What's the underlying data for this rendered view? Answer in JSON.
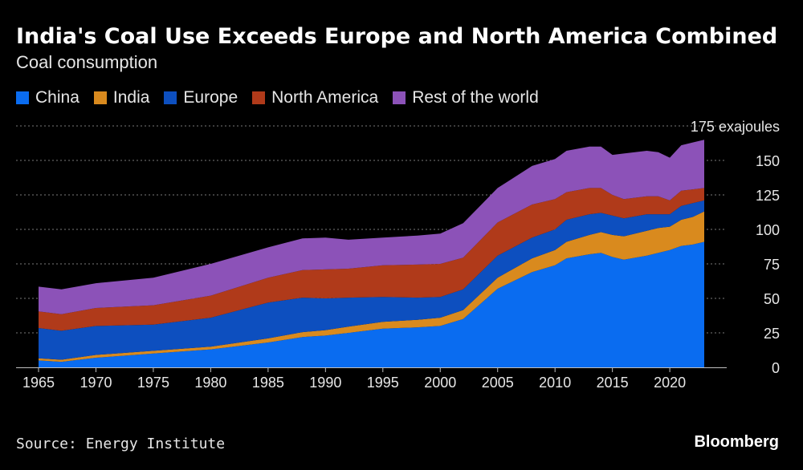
{
  "title": "India's Coal Use Exceeds Europe and North America Combined",
  "subtitle": "Coal consumption",
  "source": "Source: Energy Institute",
  "brand": "Bloomberg",
  "y_unit_label": "175 exajoules",
  "colors": {
    "China": "#0a6cf0",
    "India": "#d98a1e",
    "Europe": "#0d4fbf",
    "North America": "#b03a1a",
    "Rest of the world": "#8c52b8",
    "grid": "#7a7a7a",
    "axis": "#bfbfbf"
  },
  "chart_data": {
    "type": "area",
    "stacked": true,
    "title": "India's Coal Use Exceeds Europe and North America Combined",
    "subtitle": "Coal consumption",
    "ylabel": "exajoules",
    "ylim": [
      0,
      175
    ],
    "yticks": [
      0,
      25,
      50,
      75,
      100,
      125,
      150,
      175
    ],
    "ytick_labels": [
      "0",
      "25",
      "50",
      "75",
      "100",
      "125",
      "150",
      "175 exajoules"
    ],
    "xticks": [
      1965,
      1970,
      1975,
      1980,
      1985,
      1990,
      1995,
      2000,
      2005,
      2010,
      2015,
      2020
    ],
    "xtick_labels": [
      "1965",
      "1970",
      "1975",
      "1980",
      "1985",
      "1990",
      "1995",
      "2000",
      "2005",
      "2010",
      "2015",
      "2020"
    ],
    "grid": true,
    "legend": "top-left",
    "x": [
      1965,
      1967,
      1970,
      1975,
      1980,
      1985,
      1988,
      1990,
      1992,
      1995,
      1998,
      2000,
      2002,
      2005,
      2008,
      2010,
      2011,
      2013,
      2014,
      2015,
      2016,
      2018,
      2019,
      2020,
      2021,
      2022,
      2023
    ],
    "series": [
      {
        "name": "China",
        "values": [
          5,
          4,
          7,
          10,
          13,
          18,
          22,
          23,
          25,
          28,
          29,
          30,
          35,
          57,
          69,
          74,
          79,
          82,
          83,
          80,
          78,
          81,
          83,
          85,
          88,
          89,
          91
        ]
      },
      {
        "name": "India",
        "values": [
          1.5,
          1.5,
          2,
          2,
          2,
          3,
          3.5,
          4,
          4.5,
          5,
          5.5,
          6,
          6.5,
          8,
          10,
          11,
          12,
          14,
          15,
          16,
          17,
          18,
          18,
          17,
          19,
          20,
          22
        ]
      },
      {
        "name": "Europe",
        "values": [
          22,
          21,
          21,
          19,
          21,
          26,
          25,
          23,
          21,
          18,
          16,
          15,
          15,
          16,
          15,
          15,
          16,
          15,
          14,
          14,
          13,
          12,
          10,
          9,
          10,
          10,
          8
        ]
      },
      {
        "name": "North America",
        "values": [
          12,
          12,
          13,
          14,
          16,
          18,
          20,
          21,
          21,
          23,
          24,
          24,
          23,
          24,
          24,
          22,
          20,
          19,
          18,
          15,
          14,
          13,
          13,
          10,
          11,
          10,
          9
        ]
      },
      {
        "name": "Rest of the world",
        "values": [
          18,
          18,
          18,
          20,
          23,
          22,
          23,
          23,
          21,
          20,
          21,
          22,
          25,
          25,
          28,
          29,
          30,
          30,
          30,
          29,
          33,
          33,
          32,
          31,
          33,
          34,
          35
        ]
      }
    ]
  }
}
